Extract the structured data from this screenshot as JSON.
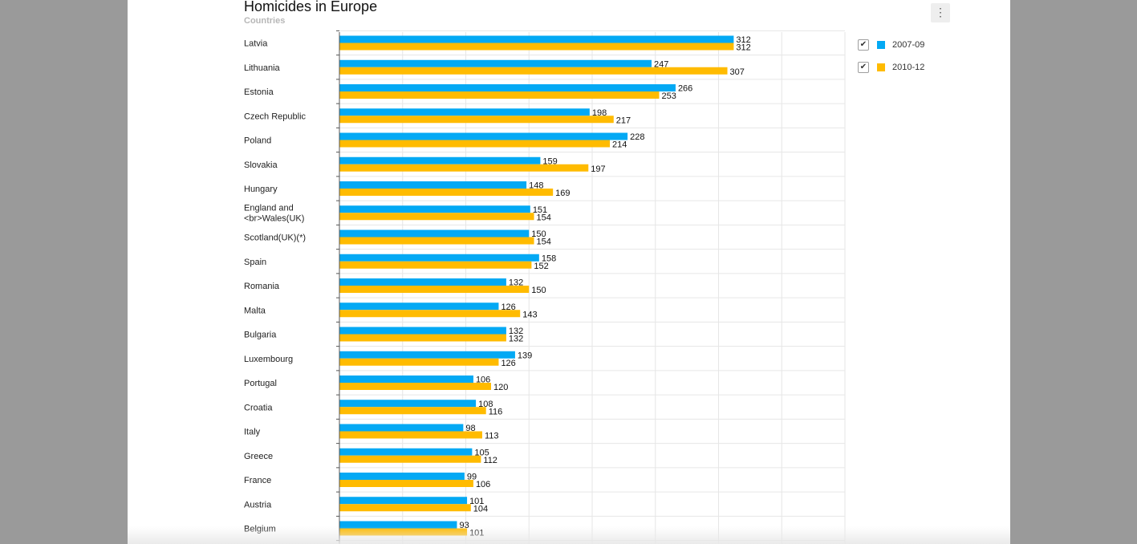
{
  "menu_icon": "⋮",
  "legend_check_icon": "✔",
  "colors": {
    "series_1": "#03a9f4",
    "series_2": "#ffbb00",
    "grid": "#e6e6e6",
    "axis": "#555555"
  },
  "chart_data": {
    "type": "bar",
    "orientation": "horizontal",
    "title": "Homicides in Europe",
    "subtitle": "Countries",
    "categories": [
      "Latvia",
      "Lithuania",
      "Estonia",
      "Czech Republic",
      "Poland",
      "Slovakia",
      "Hungary",
      "England and <br>Wales(UK)",
      "Scotland(UK)(*)",
      "Spain",
      "Romania",
      "Malta",
      "Bulgaria",
      "Luxembourg",
      "Portugal",
      "Croatia",
      "Italy",
      "Greece",
      "France",
      "Austria",
      "Belgium"
    ],
    "series": [
      {
        "name": "2007-09",
        "values": [
          312,
          247,
          266,
          198,
          228,
          159,
          148,
          151,
          150,
          158,
          132,
          126,
          132,
          139,
          106,
          108,
          98,
          105,
          99,
          101,
          93
        ]
      },
      {
        "name": "2010-12",
        "values": [
          312,
          307,
          253,
          217,
          214,
          197,
          169,
          154,
          154,
          152,
          150,
          143,
          132,
          126,
          120,
          116,
          113,
          112,
          106,
          104,
          101
        ]
      }
    ],
    "xlim": [
      0,
      400
    ],
    "grid": true,
    "legend_position": "right",
    "data_labels": true
  }
}
